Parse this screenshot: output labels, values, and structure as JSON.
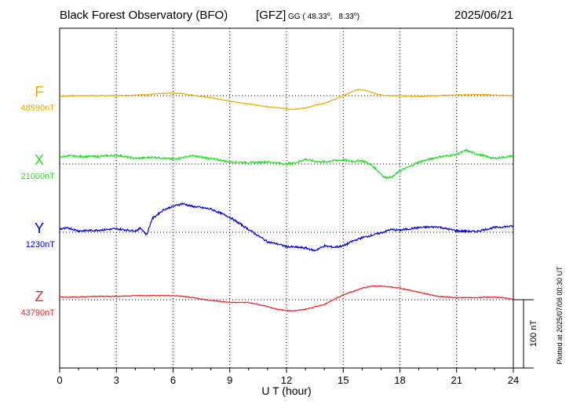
{
  "header": {
    "title": "Black Forest Observatory (BFO)",
    "source": "[GFZ]",
    "coords_prefix": "GG (",
    "lat": "48.33",
    "lon": "8.33",
    "coords_suffix": ")",
    "date": "2025/06/21"
  },
  "footer": {
    "plotted_note": "Plotted at 2025/07/08 00:30 UT"
  },
  "chart_data": {
    "type": "line",
    "xlabel": "U T (hour)",
    "xlim": [
      0,
      24
    ],
    "xticks": [
      "0",
      "3",
      "6",
      "9",
      "12",
      "15",
      "18",
      "21",
      "24"
    ],
    "scale_bar_label": "100 nT",
    "scale_bar_nT": 100,
    "grid": true,
    "series": [
      {
        "name": "F",
        "baseline_label": "48590nT",
        "baseline_nT": 48590,
        "color": "#f0a800",
        "x": [
          0,
          0.5,
          1,
          2,
          3,
          4,
          4.8,
          5.5,
          6,
          6.5,
          7,
          8,
          9,
          10,
          11,
          12,
          12.5,
          13,
          13.5,
          14,
          14.5,
          15,
          15.5,
          15.8,
          16.2,
          16.7,
          17.2,
          18,
          19,
          20,
          21,
          22,
          23,
          24
        ],
        "values": [
          -1,
          0,
          0,
          0,
          0,
          1,
          2,
          3,
          4,
          3,
          1,
          -3,
          -8,
          -12,
          -16,
          -19,
          -20,
          -18,
          -14,
          -11,
          -6,
          0,
          6,
          9,
          8,
          3,
          0,
          0,
          -1,
          0,
          1,
          2,
          1,
          0
        ]
      },
      {
        "name": "X",
        "baseline_label": "21000nT",
        "baseline_nT": 21000,
        "color": "#22dd22",
        "x": [
          0,
          0.5,
          1,
          2,
          3,
          4,
          5,
          6,
          7,
          8,
          9,
          10,
          11,
          12,
          12.5,
          13,
          13.5,
          14,
          14.5,
          15,
          15.5,
          16,
          16.4,
          16.8,
          17.2,
          17.6,
          18,
          18.5,
          19,
          20,
          21,
          21.5,
          22,
          23,
          24
        ],
        "values": [
          10,
          12,
          11,
          11,
          13,
          8,
          10,
          7,
          12,
          8,
          3,
          2,
          3,
          0,
          2,
          7,
          4,
          3,
          5,
          6,
          4,
          5,
          0,
          -9,
          -20,
          -19,
          -10,
          -4,
          3,
          10,
          14,
          20,
          15,
          8,
          12
        ]
      },
      {
        "name": "Y",
        "baseline_label": "1230nT",
        "baseline_nT": 1230,
        "color": "#0000dd",
        "x": [
          0,
          0.5,
          1,
          2,
          3,
          4,
          4.3,
          4.6,
          4.9,
          5.5,
          6,
          6.5,
          7,
          8,
          9,
          10,
          10.5,
          11,
          11.5,
          12,
          12.5,
          13,
          13.5,
          14,
          14.5,
          15,
          15.5,
          16,
          17,
          17.5,
          18,
          19,
          20,
          21,
          22,
          23,
          24
        ],
        "values": [
          5,
          6,
          2,
          3,
          5,
          2,
          6,
          -4,
          20,
          33,
          38,
          42,
          38,
          34,
          22,
          4,
          -5,
          -14,
          -17,
          -21,
          -22,
          -23,
          -27,
          -20,
          -22,
          -20,
          -13,
          -8,
          -1,
          4,
          3,
          7,
          8,
          2,
          1,
          7,
          9
        ]
      },
      {
        "name": "Z",
        "baseline_label": "43790nT",
        "baseline_nT": 43790,
        "color": "#ee2222",
        "x": [
          0,
          1,
          2,
          3,
          4,
          5,
          6,
          6.5,
          7,
          8,
          9,
          10,
          11,
          11.5,
          12,
          12.5,
          13,
          14,
          15,
          15.5,
          16,
          16.5,
          17,
          18,
          19,
          20,
          21,
          22,
          23,
          24
        ],
        "values": [
          4,
          4,
          5,
          5,
          6,
          6,
          6,
          5,
          3,
          -1,
          -4,
          -4,
          -10,
          -14,
          -16,
          -16,
          -14,
          -7,
          7,
          12,
          17,
          20,
          20,
          17,
          11,
          5,
          3,
          3,
          4,
          1
        ]
      }
    ]
  }
}
